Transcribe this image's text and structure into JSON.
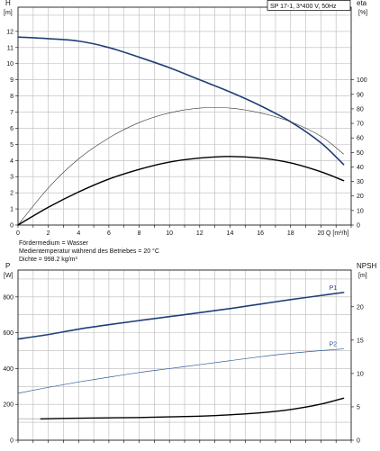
{
  "chart_data": [
    {
      "type": "line",
      "legend_box": "SP 17-1, 3*400 V, 50Hz",
      "x_axis": {
        "label": "Q [m³/h]",
        "min": 0,
        "max": 22,
        "ticks": [
          0,
          2,
          4,
          6,
          8,
          10,
          12,
          14,
          16,
          18,
          20
        ]
      },
      "y_left": {
        "label_top": "H",
        "label_unit": "[m]",
        "min": 0,
        "max": 13.5,
        "ticks": [
          0,
          1,
          2,
          3,
          4,
          5,
          6,
          7,
          8,
          9,
          10,
          11,
          12
        ]
      },
      "y_right": {
        "label_top": "eta",
        "label_unit": "[%]",
        "min": 0,
        "max": 150,
        "ticks": [
          0,
          10,
          20,
          30,
          40,
          50,
          60,
          70,
          80,
          90,
          100
        ]
      },
      "grid": true,
      "series": [
        {
          "id": "h",
          "axis": "left",
          "color": "#1f3f78",
          "width": 1.6,
          "x": [
            0,
            2,
            4,
            6,
            8,
            10,
            12,
            14,
            16,
            18,
            20,
            21.5
          ],
          "y": [
            11.65,
            11.55,
            11.4,
            11.0,
            10.4,
            9.75,
            9.0,
            8.25,
            7.4,
            6.4,
            5.1,
            3.75
          ]
        },
        {
          "id": "eta",
          "axis": "left",
          "color": "#333333",
          "width": 0.6,
          "x": [
            0,
            2,
            4,
            6,
            8,
            10,
            12,
            14,
            16,
            18,
            20,
            21.5
          ],
          "y": [
            0,
            2.3,
            4.1,
            5.4,
            6.35,
            6.95,
            7.25,
            7.25,
            6.95,
            6.4,
            5.5,
            4.4
          ]
        },
        {
          "id": "eta_total",
          "axis": "left",
          "color": "#000000",
          "width": 1.4,
          "x": [
            0,
            2,
            4,
            6,
            8,
            10,
            12,
            14,
            16,
            18,
            20,
            21.5
          ],
          "y": [
            0,
            1.1,
            2.05,
            2.85,
            3.45,
            3.9,
            4.15,
            4.25,
            4.15,
            3.85,
            3.3,
            2.75
          ]
        }
      ],
      "notes": [
        "Fördermedium = Wasser",
        "Medientemperatur während des Betriebes = 20 °C",
        "Dichte = 998.2 kg/m³"
      ]
    },
    {
      "type": "line",
      "x_axis": {
        "min": 0,
        "max": 22
      },
      "y_left": {
        "label_top": "P",
        "label_unit": "[W]",
        "min": 0,
        "max": 950,
        "ticks": [
          0,
          200,
          400,
          600,
          800
        ]
      },
      "y_right": {
        "label_top": "NPSH",
        "label_unit": "[m]",
        "min": 0,
        "max": 25.5,
        "ticks": [
          0,
          5,
          10,
          15,
          20
        ]
      },
      "grid": true,
      "series": [
        {
          "id": "p1",
          "name": "P1",
          "axis": "left",
          "color": "#1f3f78",
          "width": 1.6,
          "x": [
            0,
            2,
            4,
            6,
            8,
            10,
            12,
            14,
            16,
            18,
            20,
            21.5
          ],
          "y": [
            565,
            590,
            620,
            645,
            668,
            690,
            712,
            735,
            760,
            785,
            808,
            825
          ]
        },
        {
          "id": "p2",
          "name": "P2",
          "axis": "left",
          "color": "#2f5b9a",
          "width": 0.7,
          "x": [
            0,
            2,
            4,
            6,
            8,
            10,
            12,
            14,
            16,
            18,
            20,
            21.5
          ],
          "y": [
            262,
            295,
            325,
            352,
            378,
            400,
            422,
            444,
            466,
            485,
            500,
            510
          ]
        },
        {
          "id": "npsh",
          "axis": "right",
          "color": "#000000",
          "width": 1.4,
          "x": [
            1.5,
            4,
            6,
            8,
            10,
            12,
            14,
            16,
            18,
            20,
            21.5
          ],
          "y": [
            3.2,
            3.3,
            3.35,
            3.4,
            3.5,
            3.6,
            3.8,
            4.1,
            4.6,
            5.4,
            6.3
          ]
        }
      ],
      "extra_lines": [
        {
          "axis": "left",
          "x": [
            0,
            1.5
          ],
          "y": [
            120,
            120
          ],
          "color": "#777777",
          "width": 0.6
        }
      ]
    }
  ]
}
